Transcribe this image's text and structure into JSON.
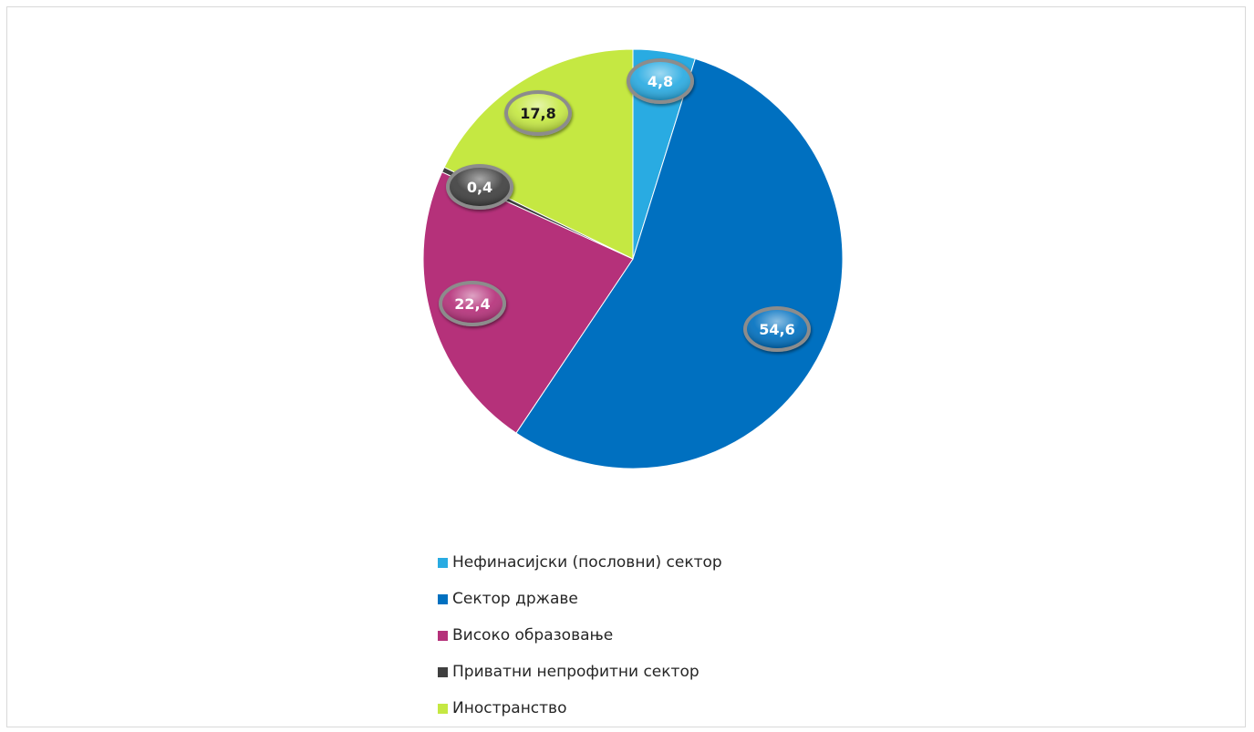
{
  "chart_data": {
    "type": "pie",
    "title": "",
    "start_angle_deg": 0,
    "direction": "clockwise",
    "legend_position": "bottom",
    "slices": [
      {
        "label": "Нефинасијски (пословни) сектор",
        "value": 4.8,
        "value_label": "4,8",
        "color": "#29ABE2",
        "label_text_color": "#ffffff"
      },
      {
        "label": "Сектор државе",
        "value": 54.6,
        "value_label": "54,6",
        "color": "#0070C0",
        "label_text_color": "#ffffff"
      },
      {
        "label": "Високо образовање",
        "value": 22.4,
        "value_label": "22,4",
        "color": "#B5317A",
        "label_text_color": "#ffffff"
      },
      {
        "label": "Приватни непрофитни сектор",
        "value": 0.4,
        "value_label": "0,4",
        "color": "#3F3F3F",
        "label_text_color": "#ffffff"
      },
      {
        "label": "Иностранство",
        "value": 17.8,
        "value_label": "17,8",
        "color": "#C5E842",
        "label_text_color": "#1a1a1a"
      }
    ]
  }
}
